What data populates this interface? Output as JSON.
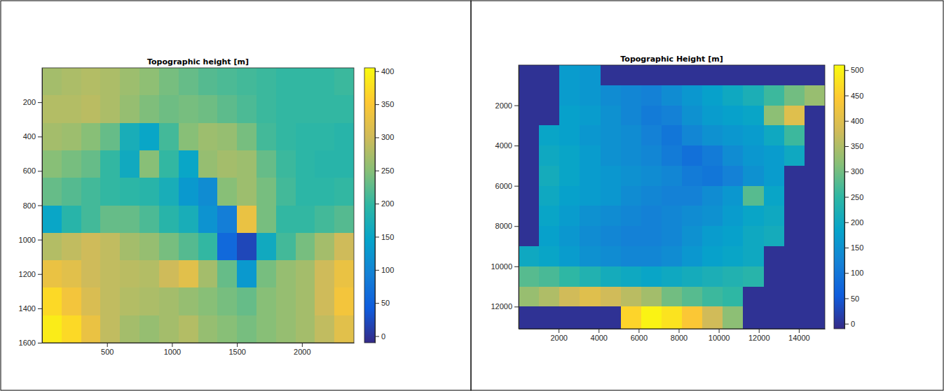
{
  "chart_data": [
    {
      "type": "heatmap",
      "title": "Topographic height [m]",
      "x_edges": [
        0,
        150,
        300,
        450,
        600,
        750,
        900,
        1050,
        1200,
        1350,
        1500,
        1650,
        1800,
        1950,
        2100,
        2250,
        2400
      ],
      "y_edges": [
        0,
        160,
        320,
        480,
        640,
        800,
        960,
        1120,
        1280,
        1440,
        1600
      ],
      "z": [
        [
          270,
          275,
          280,
          275,
          265,
          255,
          240,
          230,
          220,
          215,
          210,
          205,
          200,
          200,
          200,
          205
        ],
        [
          280,
          280,
          285,
          275,
          260,
          245,
          235,
          240,
          235,
          225,
          215,
          205,
          200,
          200,
          200,
          200
        ],
        [
          270,
          265,
          250,
          230,
          170,
          150,
          210,
          250,
          265,
          260,
          240,
          210,
          200,
          195,
          195,
          190
        ],
        [
          250,
          240,
          230,
          200,
          160,
          250,
          200,
          150,
          260,
          270,
          265,
          230,
          205,
          195,
          190,
          190
        ],
        [
          230,
          220,
          210,
          200,
          195,
          190,
          170,
          130,
          110,
          250,
          265,
          240,
          210,
          195,
          195,
          200
        ],
        [
          150,
          190,
          210,
          230,
          230,
          215,
          190,
          170,
          120,
          90,
          330,
          240,
          200,
          200,
          210,
          220
        ],
        [
          280,
          290,
          300,
          290,
          270,
          260,
          240,
          220,
          200,
          60,
          20,
          160,
          210,
          240,
          270,
          300
        ],
        [
          330,
          320,
          300,
          290,
          285,
          280,
          300,
          320,
          270,
          230,
          130,
          240,
          260,
          270,
          300,
          330
        ],
        [
          370,
          340,
          310,
          290,
          280,
          275,
          270,
          260,
          250,
          240,
          230,
          250,
          260,
          270,
          300,
          340
        ],
        [
          390,
          370,
          330,
          290,
          270,
          260,
          270,
          280,
          260,
          250,
          240,
          250,
          260,
          270,
          290,
          320
        ]
      ],
      "xlim": [
        0,
        2400
      ],
      "ylim": [
        0,
        1600
      ],
      "xticks": [
        500,
        1000,
        1500,
        2000
      ],
      "yticks": [
        200,
        400,
        600,
        800,
        1000,
        1200,
        1400,
        1600
      ],
      "colorbar": {
        "lim": [
          -10,
          405
        ],
        "ticks": [
          0,
          50,
          100,
          150,
          200,
          250,
          300,
          350,
          400
        ]
      }
    },
    {
      "type": "heatmap",
      "title": "Topographic Height [m]",
      "x_edges": [
        0,
        1020,
        2040,
        3060,
        4080,
        5100,
        6120,
        7140,
        8160,
        9180,
        10200,
        11220,
        12240,
        13260,
        14280,
        15300
      ],
      "y_edges": [
        0,
        1000,
        2000,
        3000,
        4000,
        5000,
        6000,
        7000,
        8000,
        9000,
        10000,
        11000,
        12000,
        13100
      ],
      "z": [
        [
          0,
          0,
          170,
          160,
          0,
          0,
          0,
          0,
          0,
          0,
          0,
          0,
          0,
          0,
          0
        ],
        [
          0,
          0,
          170,
          160,
          140,
          130,
          120,
          140,
          160,
          180,
          200,
          220,
          260,
          300,
          330
        ],
        [
          0,
          0,
          180,
          170,
          150,
          130,
          110,
          120,
          150,
          170,
          180,
          190,
          320,
          400,
          0
        ],
        [
          0,
          190,
          180,
          160,
          150,
          140,
          120,
          100,
          130,
          150,
          160,
          170,
          200,
          260,
          0
        ],
        [
          0,
          200,
          190,
          170,
          150,
          140,
          130,
          110,
          90,
          110,
          140,
          160,
          170,
          200,
          0
        ],
        [
          0,
          210,
          190,
          170,
          160,
          150,
          140,
          130,
          110,
          100,
          120,
          150,
          170,
          0,
          0
        ],
        [
          0,
          200,
          180,
          170,
          160,
          140,
          130,
          120,
          120,
          140,
          160,
          280,
          190,
          0,
          0
        ],
        [
          0,
          190,
          170,
          150,
          140,
          130,
          120,
          130,
          140,
          150,
          170,
          190,
          200,
          0,
          0
        ],
        [
          0,
          180,
          160,
          140,
          130,
          120,
          120,
          130,
          150,
          170,
          180,
          200,
          210,
          0,
          0
        ],
        [
          200,
          190,
          170,
          150,
          140,
          130,
          130,
          140,
          160,
          180,
          190,
          200,
          0,
          0,
          0
        ],
        [
          280,
          270,
          250,
          230,
          210,
          200,
          190,
          200,
          210,
          220,
          230,
          240,
          0,
          0,
          0
        ],
        [
          330,
          350,
          380,
          400,
          380,
          360,
          340,
          300,
          280,
          260,
          250,
          0,
          0,
          0,
          0
        ],
        [
          0,
          0,
          0,
          0,
          0,
          460,
          500,
          480,
          440,
          380,
          320,
          0,
          0,
          0,
          0
        ]
      ],
      "xlim": [
        0,
        15300
      ],
      "ylim": [
        0,
        13100
      ],
      "xticks": [
        2000,
        4000,
        6000,
        8000,
        10000,
        12000,
        14000
      ],
      "yticks": [
        2000,
        4000,
        6000,
        8000,
        10000,
        12000
      ],
      "colorbar": {
        "lim": [
          -10,
          510
        ],
        "ticks": [
          0,
          50,
          100,
          150,
          200,
          250,
          300,
          350,
          400,
          450,
          500
        ]
      }
    }
  ]
}
